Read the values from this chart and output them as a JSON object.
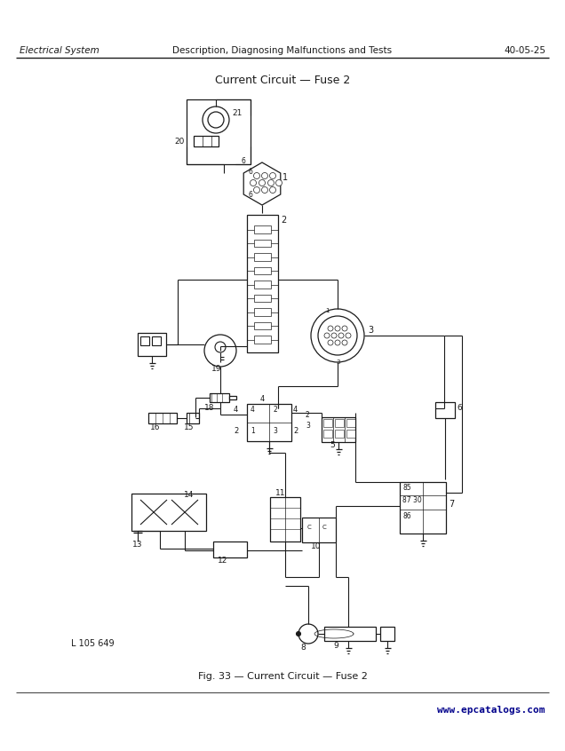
{
  "bg_color": "#ffffff",
  "page_header_left": "Electrical System",
  "page_header_center": "Description, Diagnosing Malfunctions and Tests",
  "page_header_right": "40-05-25",
  "diagram_title": "Current Circuit — Fuse 2",
  "figure_caption": "Fig. 33 — Current Circuit — Fuse 2",
  "bottom_left_label": "L 105 649",
  "watermark": "www.epcatalogs.com",
  "line_color": "#1a1a1a",
  "lw": 0.9,
  "wlw": 0.8
}
